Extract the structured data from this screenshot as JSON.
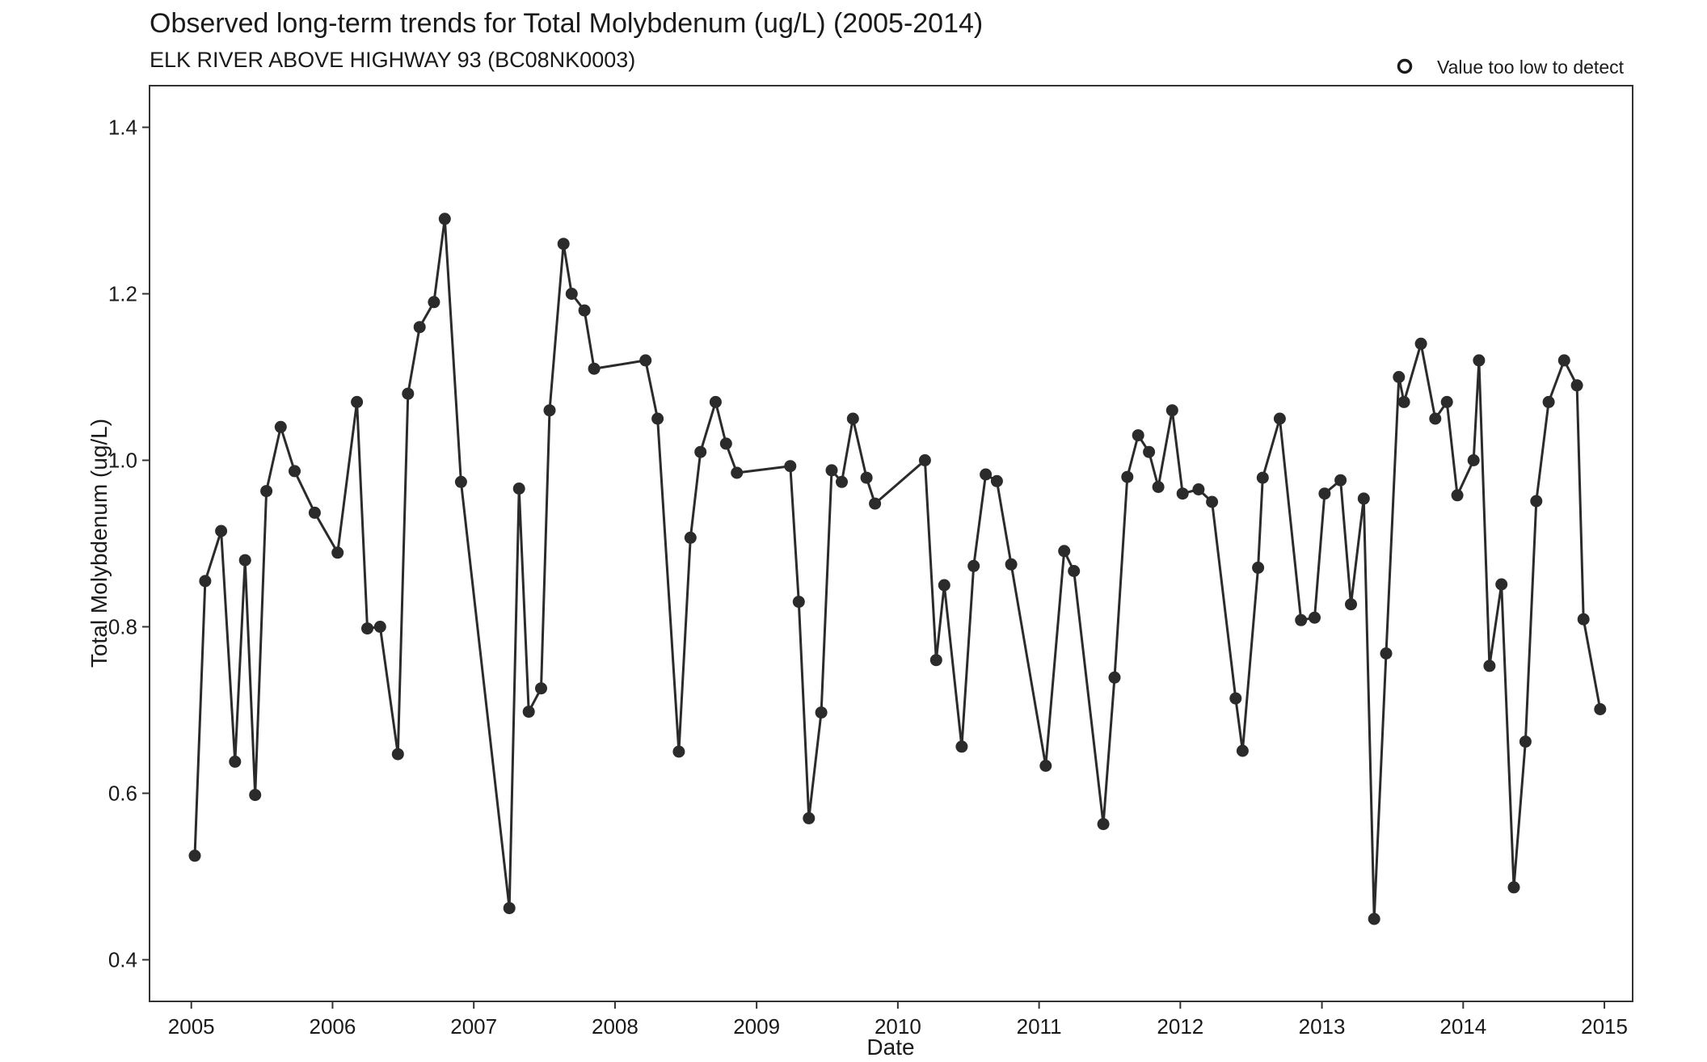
{
  "chart_data": {
    "type": "line",
    "title": "Observed long-term trends for Total Molybdenum (ug/L) (2005-2014)",
    "subtitle": "ELK RIVER ABOVE HIGHWAY 93 (BC08NK0003)",
    "xlabel": "Date",
    "ylabel": "Total Molybdenum (ug/L)",
    "xlim": [
      "2004-09-15",
      "2015-03-15"
    ],
    "ylim": [
      0.35,
      1.45
    ],
    "x_ticks": [
      "2005",
      "2006",
      "2007",
      "2008",
      "2009",
      "2010",
      "2011",
      "2012",
      "2013",
      "2014",
      "2015"
    ],
    "y_ticks": [
      "0.4",
      "0.6",
      "0.8",
      "1.0",
      "1.2",
      "1.4"
    ],
    "grid": false,
    "legend": {
      "position": "top-right",
      "entries": [
        {
          "label": "Value too low to detect",
          "marker": "open-circle"
        }
      ]
    },
    "colors": {
      "series": "#2b2b2b",
      "frame": "#333333",
      "text": "#1a1a1a"
    },
    "series": [
      {
        "values": [
          [
            "2005-01-10",
            0.525
          ],
          [
            "2005-02-06",
            0.855
          ],
          [
            "2005-03-19",
            0.915
          ],
          [
            "2005-04-24",
            0.638
          ],
          [
            "2005-05-20",
            0.88
          ],
          [
            "2005-06-15",
            0.598
          ],
          [
            "2005-07-14",
            0.963
          ],
          [
            "2005-08-20",
            1.04
          ],
          [
            "2005-09-25",
            0.987
          ],
          [
            "2005-11-16",
            0.937
          ],
          [
            "2006-01-14",
            0.889
          ],
          [
            "2006-03-05",
            1.07
          ],
          [
            "2006-04-01",
            0.798
          ],
          [
            "2006-05-04",
            0.8
          ],
          [
            "2006-06-19",
            0.647
          ],
          [
            "2006-07-15",
            1.08
          ],
          [
            "2006-08-14",
            1.16
          ],
          [
            "2006-09-20",
            1.19
          ],
          [
            "2006-10-18",
            1.29
          ],
          [
            "2006-11-29",
            0.974
          ],
          [
            "2007-04-03",
            0.462
          ],
          [
            "2007-04-28",
            0.966
          ],
          [
            "2007-05-23",
            0.698
          ],
          [
            "2007-06-24",
            0.726
          ],
          [
            "2007-07-16",
            1.06
          ],
          [
            "2007-08-21",
            1.26
          ],
          [
            "2007-09-11",
            1.2
          ],
          [
            "2007-10-14",
            1.18
          ],
          [
            "2007-11-08",
            1.11
          ],
          [
            "2008-03-20",
            1.12
          ],
          [
            "2008-04-20",
            1.05
          ],
          [
            "2008-06-14",
            0.65
          ],
          [
            "2008-07-14",
            0.907
          ],
          [
            "2008-08-09",
            1.01
          ],
          [
            "2008-09-17",
            1.07
          ],
          [
            "2008-10-14",
            1.02
          ],
          [
            "2008-11-11",
            0.985
          ],
          [
            "2009-03-29",
            0.993
          ],
          [
            "2009-04-20",
            0.83
          ],
          [
            "2009-05-16",
            0.57
          ],
          [
            "2009-06-17",
            0.697
          ],
          [
            "2009-07-14",
            0.988
          ],
          [
            "2009-08-09",
            0.974
          ],
          [
            "2009-09-07",
            1.05
          ],
          [
            "2009-10-12",
            0.979
          ],
          [
            "2009-11-03",
            0.948
          ],
          [
            "2010-03-12",
            1.0
          ],
          [
            "2010-04-10",
            0.76
          ],
          [
            "2010-05-01",
            0.85
          ],
          [
            "2010-06-15",
            0.656
          ],
          [
            "2010-07-16",
            0.873
          ],
          [
            "2010-08-16",
            0.983
          ],
          [
            "2010-09-14",
            0.975
          ],
          [
            "2010-10-21",
            0.875
          ],
          [
            "2011-01-18",
            0.633
          ],
          [
            "2011-03-07",
            0.891
          ],
          [
            "2011-04-01",
            0.867
          ],
          [
            "2011-06-16",
            0.563
          ],
          [
            "2011-07-15",
            0.739
          ],
          [
            "2011-08-17",
            0.98
          ],
          [
            "2011-09-14",
            1.03
          ],
          [
            "2011-10-12",
            1.01
          ],
          [
            "2011-11-05",
            0.968
          ],
          [
            "2011-12-11",
            1.06
          ],
          [
            "2012-01-07",
            0.96
          ],
          [
            "2012-02-17",
            0.965
          ],
          [
            "2012-03-23",
            0.95
          ],
          [
            "2012-05-23",
            0.714
          ],
          [
            "2012-06-10",
            0.651
          ],
          [
            "2012-07-20",
            0.871
          ],
          [
            "2012-08-01",
            0.979
          ],
          [
            "2012-09-14",
            1.05
          ],
          [
            "2012-11-08",
            0.808
          ],
          [
            "2012-12-13",
            0.811
          ],
          [
            "2013-01-08",
            0.96
          ],
          [
            "2013-02-18",
            0.976
          ],
          [
            "2013-03-17",
            0.827
          ],
          [
            "2013-04-19",
            0.954
          ],
          [
            "2013-05-16",
            0.449
          ],
          [
            "2013-06-16",
            0.768
          ],
          [
            "2013-07-19",
            1.1
          ],
          [
            "2013-08-01",
            1.07
          ],
          [
            "2013-09-14",
            1.14
          ],
          [
            "2013-10-21",
            1.05
          ],
          [
            "2013-11-20",
            1.07
          ],
          [
            "2013-12-17",
            0.958
          ],
          [
            "2014-01-28",
            1.0
          ],
          [
            "2014-02-11",
            1.12
          ],
          [
            "2014-03-10",
            0.753
          ],
          [
            "2014-04-10",
            0.851
          ],
          [
            "2014-05-12",
            0.487
          ],
          [
            "2014-06-11",
            0.662
          ],
          [
            "2014-07-09",
            0.951
          ],
          [
            "2014-08-10",
            1.07
          ],
          [
            "2014-09-19",
            1.12
          ],
          [
            "2014-10-22",
            1.09
          ],
          [
            "2014-11-08",
            0.809
          ],
          [
            "2014-12-21",
            0.701
          ]
        ]
      }
    ]
  }
}
